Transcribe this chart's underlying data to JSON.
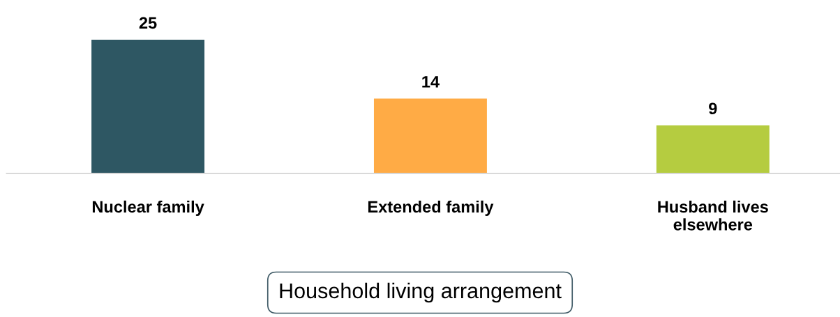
{
  "chart_data": {
    "type": "bar",
    "xlabel": "Household living arrangement",
    "categories": [
      "Nuclear family",
      "Extended family",
      "Husband lives\nelsewhere"
    ],
    "values": [
      25,
      14,
      9
    ],
    "colors": [
      "#2e5763",
      "#ffab45",
      "#b5cc40"
    ],
    "data_labels": true
  }
}
